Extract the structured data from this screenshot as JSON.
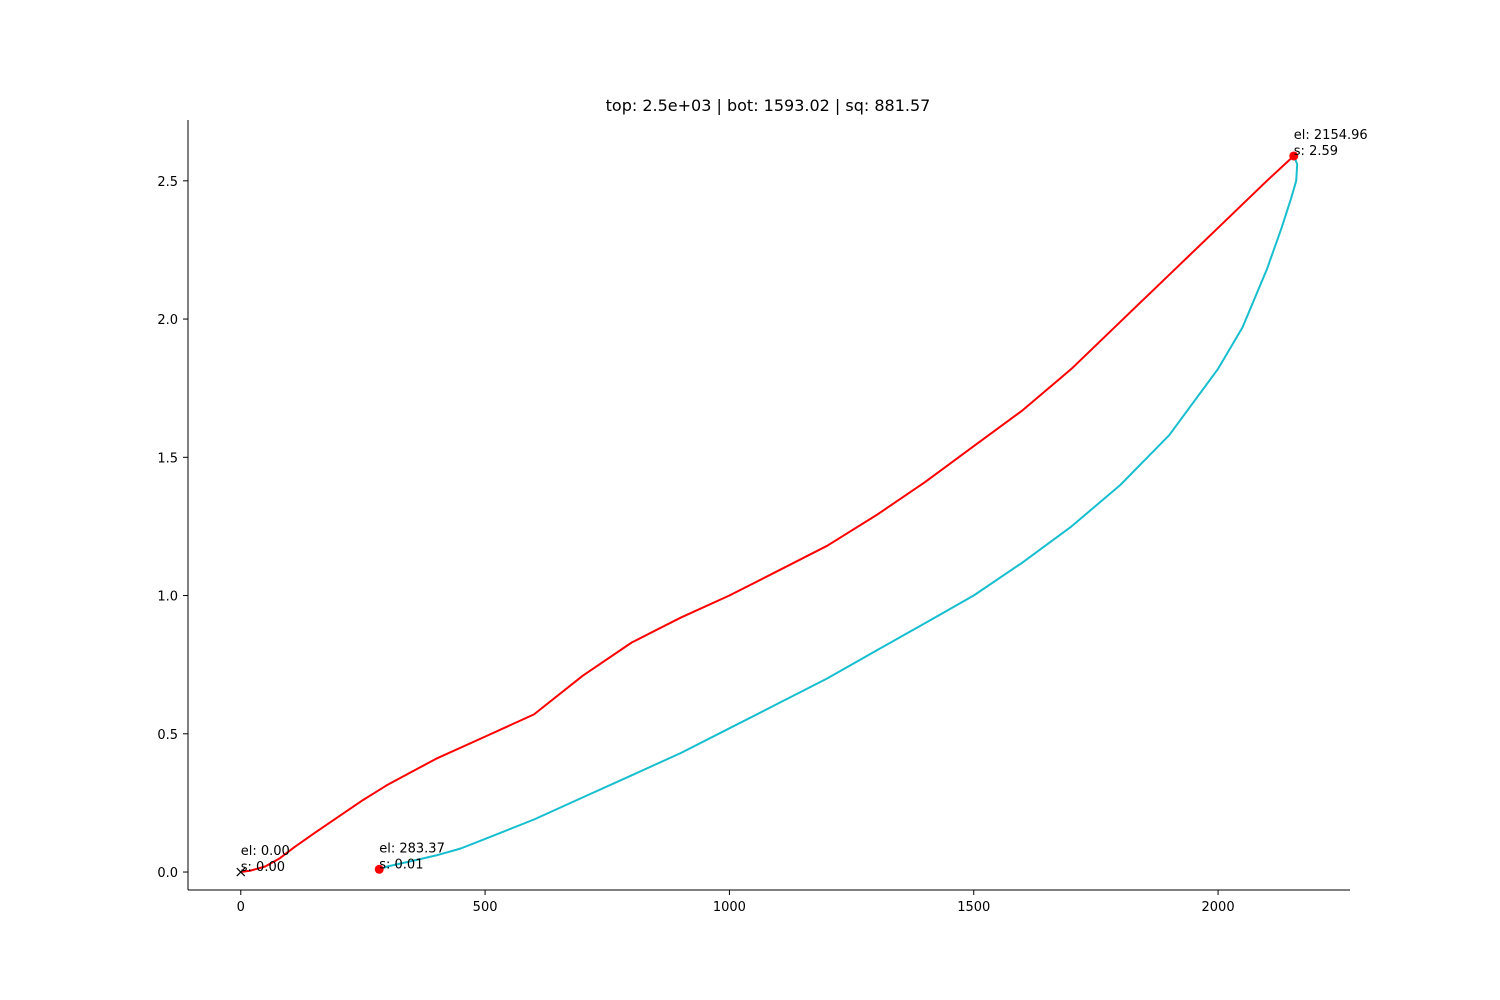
{
  "chart_data": {
    "type": "line",
    "title": "top: 2.5e+03 | bot: 1593.02 | sq: 881.57",
    "xlabel": "",
    "ylabel": "",
    "xlim": [
      -108,
      2270
    ],
    "ylim": [
      -0.065,
      2.72
    ],
    "x_ticks": [
      0,
      500,
      1000,
      1500,
      2000
    ],
    "y_ticks": [
      0.0,
      0.5,
      1.0,
      1.5,
      2.0,
      2.5
    ],
    "x_tick_labels": [
      "0",
      "500",
      "1000",
      "1500",
      "2000"
    ],
    "y_tick_labels": [
      "0.0",
      "0.5",
      "1.0",
      "1.5",
      "2.0",
      "2.5"
    ],
    "grid": false,
    "legend": "none",
    "series": [
      {
        "color": "#ff0000",
        "points": [
          [
            0,
            0.0
          ],
          [
            20,
            0.005
          ],
          [
            50,
            0.02
          ],
          [
            80,
            0.05
          ],
          [
            110,
            0.09
          ],
          [
            150,
            0.14
          ],
          [
            200,
            0.2
          ],
          [
            250,
            0.26
          ],
          [
            300,
            0.315
          ],
          [
            400,
            0.41
          ],
          [
            500,
            0.49
          ],
          [
            600,
            0.57
          ],
          [
            700,
            0.71
          ],
          [
            800,
            0.83
          ],
          [
            900,
            0.92
          ],
          [
            1000,
            1.0
          ],
          [
            1100,
            1.09
          ],
          [
            1200,
            1.18
          ],
          [
            1300,
            1.29
          ],
          [
            1400,
            1.41
          ],
          [
            1500,
            1.54
          ],
          [
            1600,
            1.67
          ],
          [
            1700,
            1.82
          ],
          [
            1800,
            1.99
          ],
          [
            1900,
            2.16
          ],
          [
            2000,
            2.33
          ],
          [
            2100,
            2.5
          ],
          [
            2154.96,
            2.59
          ]
        ]
      },
      {
        "color": "#17becf",
        "points": [
          [
            283.37,
            0.01
          ],
          [
            300,
            0.02
          ],
          [
            350,
            0.04
          ],
          [
            400,
            0.06
          ],
          [
            450,
            0.085
          ],
          [
            500,
            0.12
          ],
          [
            600,
            0.19
          ],
          [
            700,
            0.27
          ],
          [
            800,
            0.35
          ],
          [
            900,
            0.43
          ],
          [
            1000,
            0.52
          ],
          [
            1100,
            0.61
          ],
          [
            1200,
            0.7
          ],
          [
            1300,
            0.8
          ],
          [
            1400,
            0.9
          ],
          [
            1500,
            1.0
          ],
          [
            1600,
            1.12
          ],
          [
            1700,
            1.25
          ],
          [
            1800,
            1.4
          ],
          [
            1900,
            1.58
          ],
          [
            2000,
            1.82
          ],
          [
            2050,
            1.97
          ],
          [
            2100,
            2.18
          ],
          [
            2130,
            2.33
          ],
          [
            2150,
            2.44
          ],
          [
            2160,
            2.5
          ],
          [
            2162,
            2.56
          ],
          [
            2154.96,
            2.59
          ]
        ]
      }
    ],
    "markers": [
      {
        "x": 0,
        "y": 0.0,
        "shape": "x",
        "color": "#000000"
      },
      {
        "x": 283.37,
        "y": 0.01,
        "shape": "dot",
        "color": "#ff0000"
      },
      {
        "x": 2154.96,
        "y": 2.59,
        "shape": "dot",
        "color": "#ff0000"
      }
    ],
    "annotations": [
      {
        "x": 0,
        "y": 0.0,
        "lines": [
          "el: 0.00",
          "s: 0.00"
        ]
      },
      {
        "x": 283.37,
        "y": 0.01,
        "lines": [
          "el: 283.37",
          "s: 0.01"
        ]
      },
      {
        "x": 2154.96,
        "y": 2.59,
        "lines": [
          "el: 2154.96",
          "s: 2.59"
        ]
      }
    ]
  }
}
